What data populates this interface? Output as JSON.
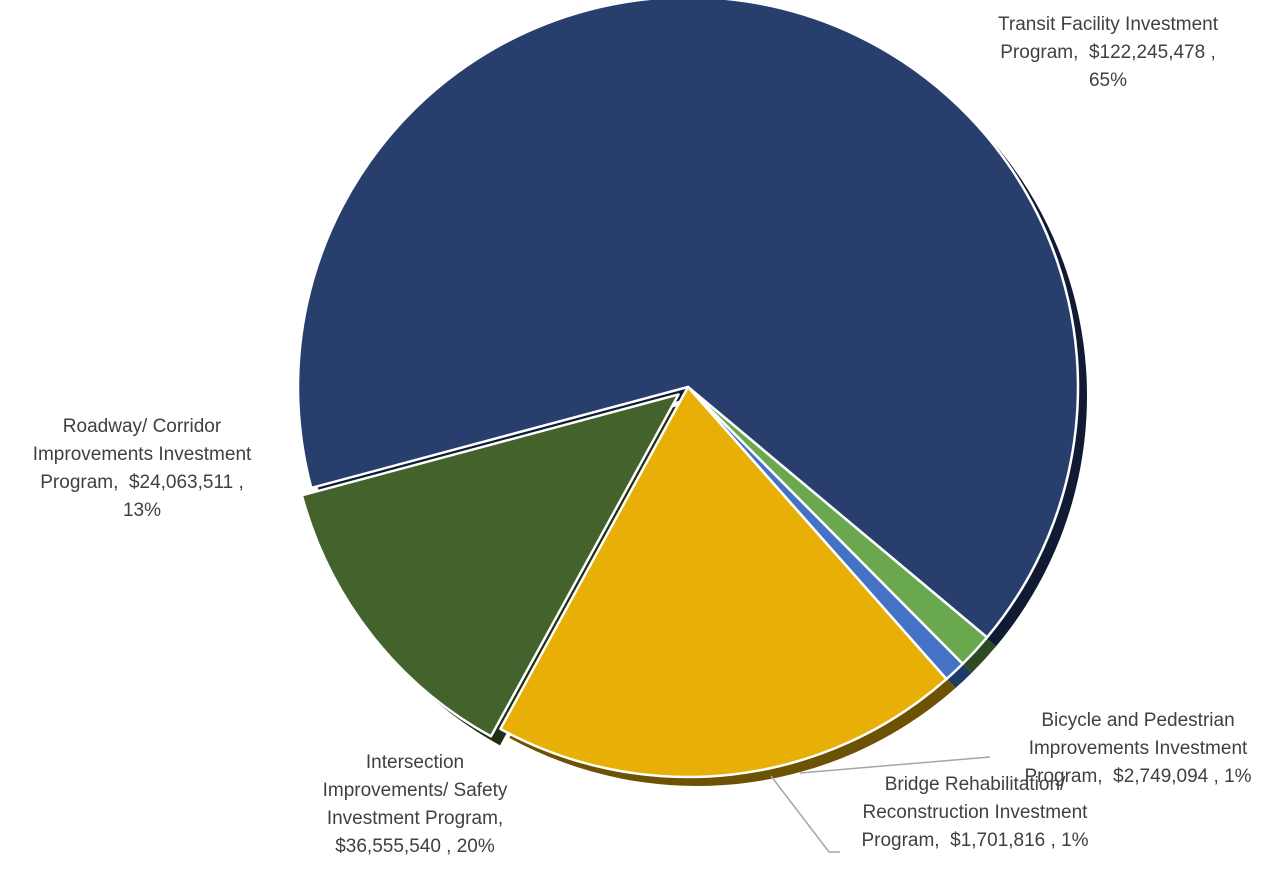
{
  "chart_data": {
    "type": "pie",
    "style": "3d-shadow",
    "title": "",
    "slices": [
      {
        "name": "Transit Facility Investment Program",
        "value": 122245478,
        "value_label": "$122,245,478",
        "percent_label": "65%",
        "label_lines": [
          "Transit Facility Investment",
          "Program,  $122,245,478 ,",
          "65%"
        ],
        "color": "#283F6E",
        "shadow_color": "#101B33"
      },
      {
        "name": "Bicycle and Pedestrian Improvements Investment Program",
        "value": 2749094,
        "value_label": "$2,749,094",
        "percent_label": "1%",
        "label_lines": [
          "Bicycle and Pedestrian",
          "Improvements Investment",
          "Program,  $2,749,094 , 1%"
        ],
        "color": "#6AA84F",
        "shadow_color": "#2E4A22"
      },
      {
        "name": "Bridge Rehabilitation/ Reconstruction Investment Program",
        "value": 1701816,
        "value_label": "$1,701,816",
        "percent_label": "1%",
        "label_lines": [
          "Bridge Rehabilitation/",
          "Reconstruction Investment",
          "Program,  $1,701,816 , 1%"
        ],
        "color": "#4472C4",
        "shadow_color": "#1F3A66"
      },
      {
        "name": "Intersection Improvements/ Safety Investment Program",
        "value": 36555540,
        "value_label": "$36,555,540",
        "percent_label": "20%",
        "label_lines": [
          "Intersection",
          "Improvements/ Safety",
          "Investment Program,",
          "$36,555,540 , 20%"
        ],
        "color": "#E8AF06",
        "shadow_color": "#6E5203"
      },
      {
        "name": "Roadway/ Corridor Improvements Investment Program",
        "value": 24063511,
        "value_label": "$24,063,511",
        "percent_label": "13%",
        "label_lines": [
          "Roadway/ Corridor",
          "Improvements Investment",
          "Program,  $24,063,511 ,",
          "13%"
        ],
        "color": "#43622C",
        "shadow_color": "#1F2F14"
      }
    ],
    "leader_line_color": "#A6A6A6",
    "separator_color": "#FFFFFF"
  }
}
